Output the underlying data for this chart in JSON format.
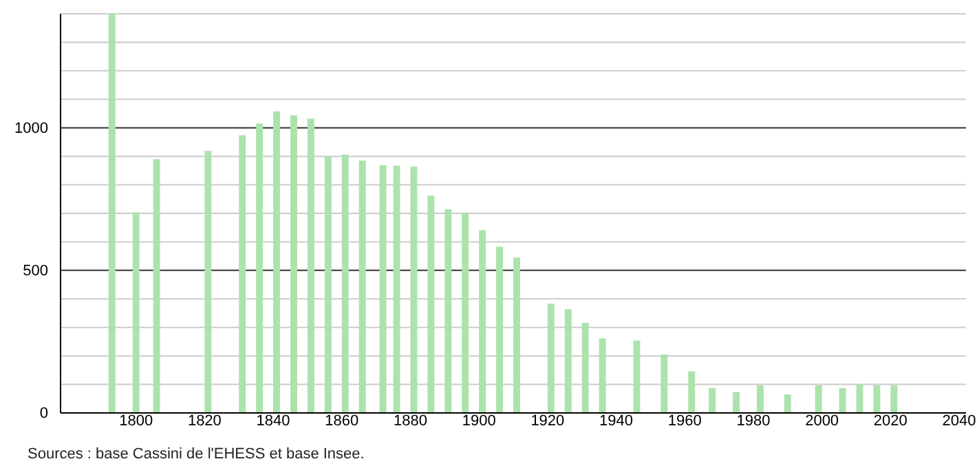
{
  "chart_data": {
    "type": "bar",
    "color": "#ace3ac",
    "x": [
      1793,
      1800,
      1806,
      1821,
      1831,
      1836,
      1841,
      1846,
      1851,
      1856,
      1861,
      1866,
      1872,
      1876,
      1881,
      1886,
      1891,
      1896,
      1901,
      1906,
      1911,
      1921,
      1926,
      1931,
      1936,
      1946,
      1954,
      1962,
      1968,
      1975,
      1982,
      1990,
      1999,
      2006,
      2011,
      2016,
      2021
    ],
    "values": [
      1400,
      704,
      890,
      919,
      974,
      1015,
      1058,
      1044,
      1032,
      898,
      906,
      885,
      869,
      867,
      864,
      762,
      714,
      702,
      641,
      583,
      545,
      383,
      364,
      316,
      262,
      254,
      205,
      146,
      87,
      73,
      97,
      65,
      97,
      87,
      101,
      97,
      97
    ],
    "xlim": [
      1778,
      2042
    ],
    "xticks": [
      1800,
      1820,
      1840,
      1860,
      1880,
      1900,
      1920,
      1940,
      1960,
      1980,
      2000,
      2020,
      2040
    ],
    "ylim": [
      0,
      1400
    ],
    "yticks": [
      0,
      {
        "value": 100,
        "label": null
      },
      {
        "value": 200,
        "label": null
      },
      {
        "value": 300,
        "label": null
      },
      {
        "value": 400,
        "label": null
      },
      500,
      {
        "value": 600,
        "label": null
      },
      {
        "value": 700,
        "label": null
      },
      {
        "value": 800,
        "label": null
      },
      {
        "value": 900,
        "label": null
      },
      1000,
      {
        "value": 1100,
        "label": null
      },
      {
        "value": 1200,
        "label": null
      },
      {
        "value": 1300,
        "label": null
      },
      {
        "value": 1400,
        "label": null
      }
    ],
    "grid": "y",
    "annotations": [
      "Sources : base Cassini de l'EHESS et base Insee."
    ]
  }
}
